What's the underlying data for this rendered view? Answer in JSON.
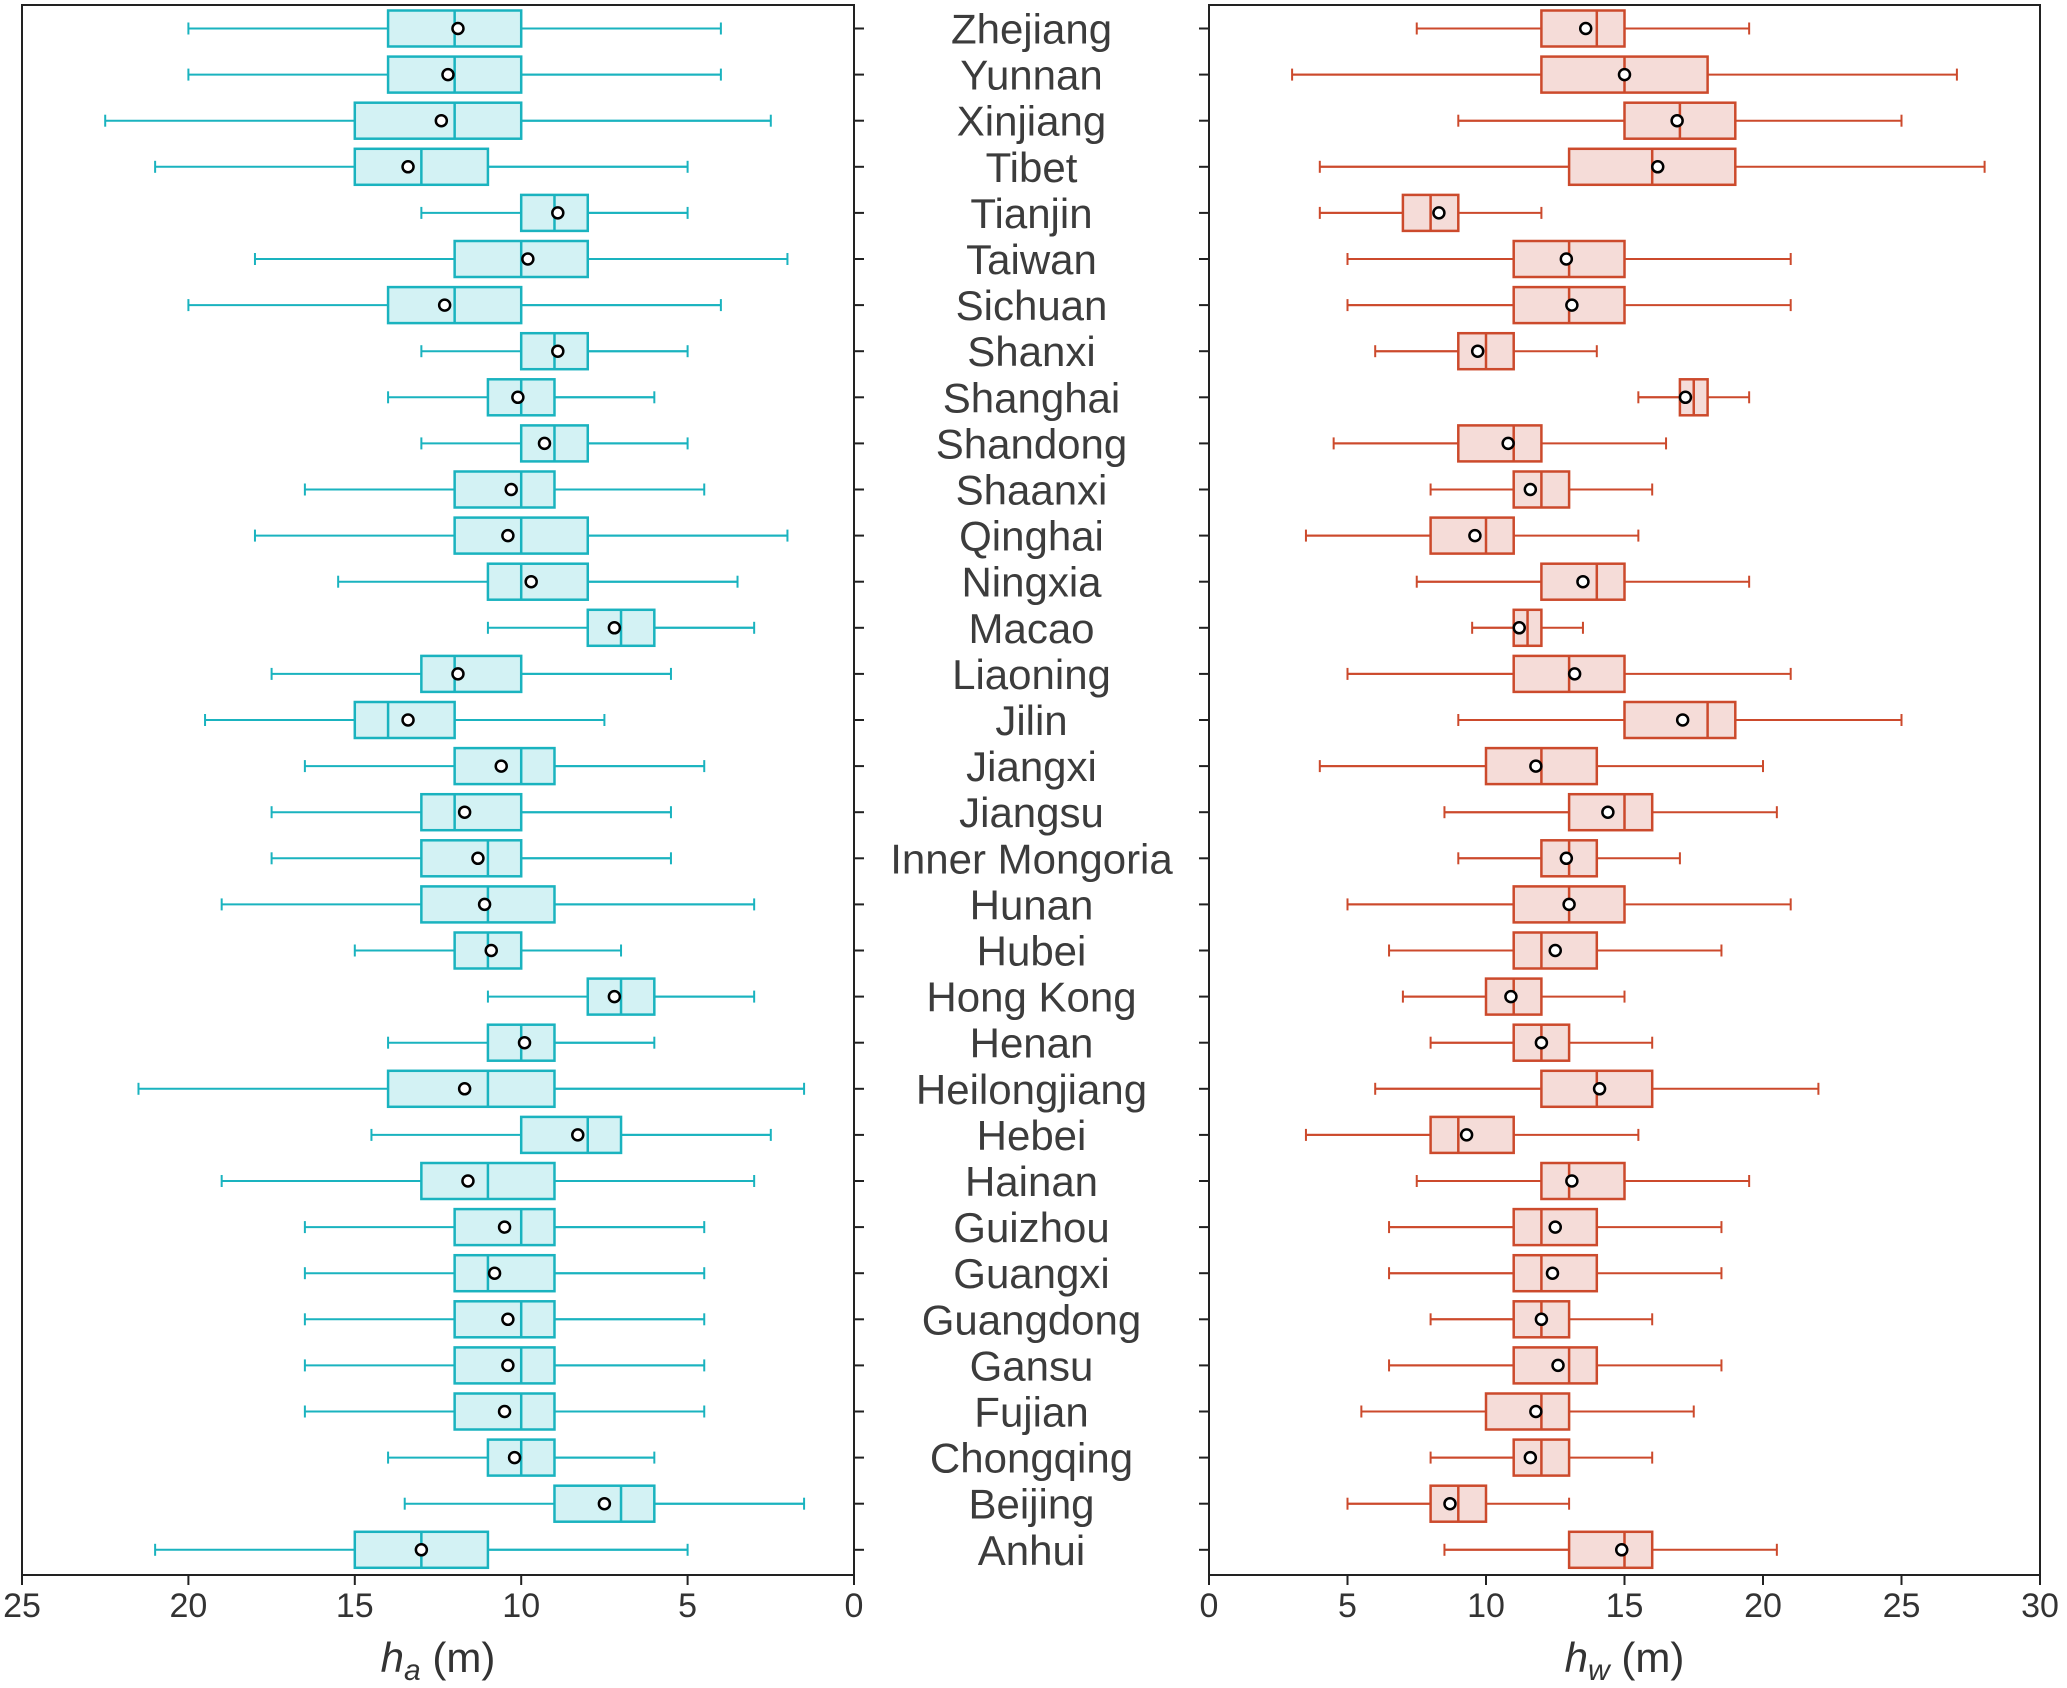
{
  "chart_data": [
    {
      "type": "box",
      "orientation": "horizontal",
      "xlabel_var": "h",
      "xlabel_sub": "a",
      "xlabel_unit": " (m)",
      "xlim": [
        25,
        0
      ],
      "xticks": [
        25,
        20,
        15,
        10,
        5,
        0
      ],
      "tick_labels": [
        "25",
        "20",
        "15",
        "10",
        "5",
        "0"
      ],
      "color": "#1ab3bf",
      "fill": "#d3f2f4",
      "categories": [
        "Zhejiang",
        "Yunnan",
        "Xinjiang",
        "Tibet",
        "Tianjin",
        "Taiwan",
        "Sichuan",
        "Shanxi",
        "Shanghai",
        "Shandong",
        "Shaanxi",
        "Qinghai",
        "Ningxia",
        "Macao",
        "Liaoning",
        "Jilin",
        "Jiangxi",
        "Jiangsu",
        "Inner Mongoria",
        "Hunan",
        "Hubei",
        "Hong Kong",
        "Henan",
        "Heilongjiang",
        "Hebei",
        "Hainan",
        "Guizhou",
        "Guangxi",
        "Guangdong",
        "Gansu",
        "Fujian",
        "Chongqing",
        "Beijing",
        "Anhui"
      ],
      "boxes": [
        {
          "whisker_low": 4,
          "q1": 10,
          "median": 12,
          "q3": 14,
          "whisker_high": 20,
          "mean": 11.9
        },
        {
          "whisker_low": 4,
          "q1": 10,
          "median": 12,
          "q3": 14,
          "whisker_high": 20,
          "mean": 12.2
        },
        {
          "whisker_low": 2.5,
          "q1": 10,
          "median": 12,
          "q3": 15,
          "whisker_high": 22.5,
          "mean": 12.4
        },
        {
          "whisker_low": 5,
          "q1": 11,
          "median": 13,
          "q3": 15,
          "whisker_high": 21,
          "mean": 13.4
        },
        {
          "whisker_low": 5,
          "q1": 8,
          "median": 9,
          "q3": 10,
          "whisker_high": 13,
          "mean": 8.9
        },
        {
          "whisker_low": 2,
          "q1": 8,
          "median": 10,
          "q3": 12,
          "whisker_high": 18,
          "mean": 9.8
        },
        {
          "whisker_low": 4,
          "q1": 10,
          "median": 12,
          "q3": 14,
          "whisker_high": 20,
          "mean": 12.3
        },
        {
          "whisker_low": 5,
          "q1": 8,
          "median": 9,
          "q3": 10,
          "whisker_high": 13,
          "mean": 8.9
        },
        {
          "whisker_low": 6,
          "q1": 9,
          "median": 10,
          "q3": 11,
          "whisker_high": 14,
          "mean": 10.1
        },
        {
          "whisker_low": 5,
          "q1": 8,
          "median": 9,
          "q3": 10,
          "whisker_high": 13,
          "mean": 9.3
        },
        {
          "whisker_low": 4.5,
          "q1": 9,
          "median": 10,
          "q3": 12,
          "whisker_high": 16.5,
          "mean": 10.3
        },
        {
          "whisker_low": 2,
          "q1": 8,
          "median": 10,
          "q3": 12,
          "whisker_high": 18,
          "mean": 10.4
        },
        {
          "whisker_low": 3.5,
          "q1": 8,
          "median": 10,
          "q3": 11,
          "whisker_high": 15.5,
          "mean": 9.7
        },
        {
          "whisker_low": 3,
          "q1": 6,
          "median": 7,
          "q3": 8,
          "whisker_high": 11,
          "mean": 7.2
        },
        {
          "whisker_low": 5.5,
          "q1": 10,
          "median": 12,
          "q3": 13,
          "whisker_high": 17.5,
          "mean": 11.9
        },
        {
          "whisker_low": 7.5,
          "q1": 12,
          "median": 14,
          "q3": 15,
          "whisker_high": 19.5,
          "mean": 13.4
        },
        {
          "whisker_low": 4.5,
          "q1": 9,
          "median": 10,
          "q3": 12,
          "whisker_high": 16.5,
          "mean": 10.6
        },
        {
          "whisker_low": 5.5,
          "q1": 10,
          "median": 12,
          "q3": 13,
          "whisker_high": 17.5,
          "mean": 11.7
        },
        {
          "whisker_low": 5.5,
          "q1": 10,
          "median": 11,
          "q3": 13,
          "whisker_high": 17.5,
          "mean": 11.3
        },
        {
          "whisker_low": 3,
          "q1": 9,
          "median": 11,
          "q3": 13,
          "whisker_high": 19,
          "mean": 11.1
        },
        {
          "whisker_low": 7,
          "q1": 10,
          "median": 11,
          "q3": 12,
          "whisker_high": 15,
          "mean": 10.9
        },
        {
          "whisker_low": 3,
          "q1": 6,
          "median": 7,
          "q3": 8,
          "whisker_high": 11,
          "mean": 7.2
        },
        {
          "whisker_low": 6,
          "q1": 9,
          "median": 10,
          "q3": 11,
          "whisker_high": 14,
          "mean": 9.9
        },
        {
          "whisker_low": 1.5,
          "q1": 9,
          "median": 11,
          "q3": 14,
          "whisker_high": 21.5,
          "mean": 11.7
        },
        {
          "whisker_low": 2.5,
          "q1": 7,
          "median": 8,
          "q3": 10,
          "whisker_high": 14.5,
          "mean": 8.3
        },
        {
          "whisker_low": 3,
          "q1": 9,
          "median": 11,
          "q3": 13,
          "whisker_high": 19,
          "mean": 11.6
        },
        {
          "whisker_low": 4.5,
          "q1": 9,
          "median": 10,
          "q3": 12,
          "whisker_high": 16.5,
          "mean": 10.5
        },
        {
          "whisker_low": 4.5,
          "q1": 9,
          "median": 11,
          "q3": 12,
          "whisker_high": 16.5,
          "mean": 10.8
        },
        {
          "whisker_low": 4.5,
          "q1": 9,
          "median": 10,
          "q3": 12,
          "whisker_high": 16.5,
          "mean": 10.4
        },
        {
          "whisker_low": 4.5,
          "q1": 9,
          "median": 10,
          "q3": 12,
          "whisker_high": 16.5,
          "mean": 10.4
        },
        {
          "whisker_low": 4.5,
          "q1": 9,
          "median": 10,
          "q3": 12,
          "whisker_high": 16.5,
          "mean": 10.5
        },
        {
          "whisker_low": 6,
          "q1": 9,
          "median": 10,
          "q3": 11,
          "whisker_high": 14,
          "mean": 10.2
        },
        {
          "whisker_low": 1.5,
          "q1": 6,
          "median": 7,
          "q3": 9,
          "whisker_high": 13.5,
          "mean": 7.5
        },
        {
          "whisker_low": 5,
          "q1": 11,
          "median": 13,
          "q3": 15,
          "whisker_high": 21,
          "mean": 13
        }
      ]
    },
    {
      "type": "box",
      "orientation": "horizontal",
      "xlabel_var": "h",
      "xlabel_sub": "w",
      "xlabel_unit": " (m)",
      "xlim": [
        0,
        30
      ],
      "xticks": [
        0,
        5,
        10,
        15,
        20,
        25,
        30
      ],
      "tick_labels": [
        "0",
        "5",
        "10",
        "15",
        "20",
        "25",
        "30"
      ],
      "color": "#cc4a2c",
      "fill": "#f5dcd8",
      "categories": [
        "Zhejiang",
        "Yunnan",
        "Xinjiang",
        "Tibet",
        "Tianjin",
        "Taiwan",
        "Sichuan",
        "Shanxi",
        "Shanghai",
        "Shandong",
        "Shaanxi",
        "Qinghai",
        "Ningxia",
        "Macao",
        "Liaoning",
        "Jilin",
        "Jiangxi",
        "Jiangsu",
        "Inner Mongoria",
        "Hunan",
        "Hubei",
        "Hong Kong",
        "Henan",
        "Heilongjiang",
        "Hebei",
        "Hainan",
        "Guizhou",
        "Guangxi",
        "Guangdong",
        "Gansu",
        "Fujian",
        "Chongqing",
        "Beijing",
        "Anhui"
      ],
      "boxes": [
        {
          "whisker_low": 7.5,
          "q1": 12,
          "median": 14,
          "q3": 15,
          "whisker_high": 19.5,
          "mean": 13.6
        },
        {
          "whisker_low": 3,
          "q1": 12,
          "median": 15,
          "q3": 18,
          "whisker_high": 27,
          "mean": 15
        },
        {
          "whisker_low": 9,
          "q1": 15,
          "median": 17,
          "q3": 19,
          "whisker_high": 25,
          "mean": 16.9
        },
        {
          "whisker_low": 4,
          "q1": 13,
          "median": 16,
          "q3": 19,
          "whisker_high": 28,
          "mean": 16.2
        },
        {
          "whisker_low": 4,
          "q1": 7,
          "median": 8,
          "q3": 9,
          "whisker_high": 12,
          "mean": 8.3
        },
        {
          "whisker_low": 5,
          "q1": 11,
          "median": 13,
          "q3": 15,
          "whisker_high": 21,
          "mean": 12.9
        },
        {
          "whisker_low": 5,
          "q1": 11,
          "median": 13,
          "q3": 15,
          "whisker_high": 21,
          "mean": 13.1
        },
        {
          "whisker_low": 6,
          "q1": 9,
          "median": 10,
          "q3": 11,
          "whisker_high": 14,
          "mean": 9.7
        },
        {
          "whisker_low": 15.5,
          "q1": 17,
          "median": 17.5,
          "q3": 18,
          "whisker_high": 19.5,
          "mean": 17.2
        },
        {
          "whisker_low": 4.5,
          "q1": 9,
          "median": 11,
          "q3": 12,
          "whisker_high": 16.5,
          "mean": 10.8
        },
        {
          "whisker_low": 8,
          "q1": 11,
          "median": 12,
          "q3": 13,
          "whisker_high": 16,
          "mean": 11.6
        },
        {
          "whisker_low": 3.5,
          "q1": 8,
          "median": 10,
          "q3": 11,
          "whisker_high": 15.5,
          "mean": 9.6
        },
        {
          "whisker_low": 7.5,
          "q1": 12,
          "median": 14,
          "q3": 15,
          "whisker_high": 19.5,
          "mean": 13.5
        },
        {
          "whisker_low": 9.5,
          "q1": 11,
          "median": 11.5,
          "q3": 12,
          "whisker_high": 13.5,
          "mean": 11.2
        },
        {
          "whisker_low": 5,
          "q1": 11,
          "median": 13,
          "q3": 15,
          "whisker_high": 21,
          "mean": 13.2
        },
        {
          "whisker_low": 9,
          "q1": 15,
          "median": 18,
          "q3": 19,
          "whisker_high": 25,
          "mean": 17.1
        },
        {
          "whisker_low": 4,
          "q1": 10,
          "median": 12,
          "q3": 14,
          "whisker_high": 20,
          "mean": 11.8
        },
        {
          "whisker_low": 8.5,
          "q1": 13,
          "median": 15,
          "q3": 16,
          "whisker_high": 20.5,
          "mean": 14.4
        },
        {
          "whisker_low": 9,
          "q1": 12,
          "median": 13,
          "q3": 14,
          "whisker_high": 17,
          "mean": 12.9
        },
        {
          "whisker_low": 5,
          "q1": 11,
          "median": 13,
          "q3": 15,
          "whisker_high": 21,
          "mean": 13
        },
        {
          "whisker_low": 6.5,
          "q1": 11,
          "median": 12,
          "q3": 14,
          "whisker_high": 18.5,
          "mean": 12.5
        },
        {
          "whisker_low": 7,
          "q1": 10,
          "median": 11,
          "q3": 12,
          "whisker_high": 15,
          "mean": 10.9
        },
        {
          "whisker_low": 8,
          "q1": 11,
          "median": 12,
          "q3": 13,
          "whisker_high": 16,
          "mean": 12
        },
        {
          "whisker_low": 6,
          "q1": 12,
          "median": 14,
          "q3": 16,
          "whisker_high": 22,
          "mean": 14.1
        },
        {
          "whisker_low": 3.5,
          "q1": 8,
          "median": 9,
          "q3": 11,
          "whisker_high": 15.5,
          "mean": 9.3
        },
        {
          "whisker_low": 7.5,
          "q1": 12,
          "median": 13,
          "q3": 15,
          "whisker_high": 19.5,
          "mean": 13.1
        },
        {
          "whisker_low": 6.5,
          "q1": 11,
          "median": 12,
          "q3": 14,
          "whisker_high": 18.5,
          "mean": 12.5
        },
        {
          "whisker_low": 6.5,
          "q1": 11,
          "median": 12,
          "q3": 14,
          "whisker_high": 18.5,
          "mean": 12.4
        },
        {
          "whisker_low": 8,
          "q1": 11,
          "median": 12,
          "q3": 13,
          "whisker_high": 16,
          "mean": 12
        },
        {
          "whisker_low": 6.5,
          "q1": 11,
          "median": 13,
          "q3": 14,
          "whisker_high": 18.5,
          "mean": 12.6
        },
        {
          "whisker_low": 5.5,
          "q1": 10,
          "median": 12,
          "q3": 13,
          "whisker_high": 17.5,
          "mean": 11.8
        },
        {
          "whisker_low": 8,
          "q1": 11,
          "median": 12,
          "q3": 13,
          "whisker_high": 16,
          "mean": 11.6
        },
        {
          "whisker_low": 5,
          "q1": 8,
          "median": 9,
          "q3": 10,
          "whisker_high": 13,
          "mean": 8.7
        },
        {
          "whisker_low": 8.5,
          "q1": 13,
          "median": 15,
          "q3": 16,
          "whisker_high": 20.5,
          "mean": 14.9
        }
      ]
    }
  ]
}
